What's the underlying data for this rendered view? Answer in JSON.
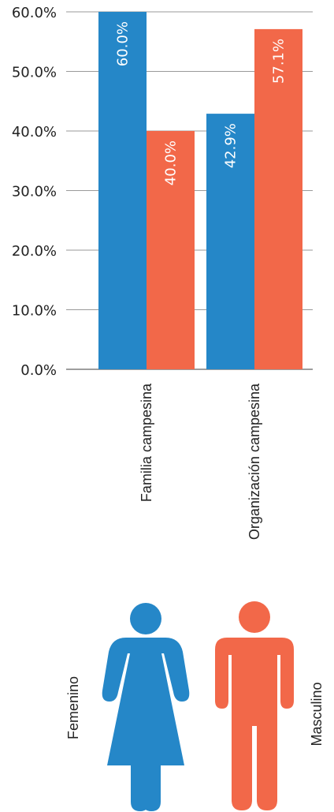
{
  "chart_data": {
    "type": "bar",
    "categories": [
      "Familia campesina",
      "Organización campesina"
    ],
    "series": [
      {
        "name": "Femenino",
        "values": [
          60.0,
          42.9
        ],
        "labels": [
          "60.0%",
          "42.9%"
        ],
        "color": "#2587c8"
      },
      {
        "name": "Masculino",
        "values": [
          40.0,
          57.1
        ],
        "labels": [
          "40.0%",
          "57.1%"
        ],
        "color": "#f26849"
      }
    ],
    "ylim": [
      0,
      60
    ],
    "yticks": [
      0,
      10,
      20,
      30,
      40,
      50,
      60
    ],
    "ytick_labels": [
      "0.0%",
      "10.0%",
      "20.0%",
      "30.0%",
      "40.0%",
      "50.0%",
      "60.0%"
    ],
    "grid": true,
    "legend_position": "bottom",
    "legend_icons": [
      "woman-icon",
      "man-icon"
    ],
    "title": "",
    "xlabel": "",
    "ylabel": ""
  }
}
